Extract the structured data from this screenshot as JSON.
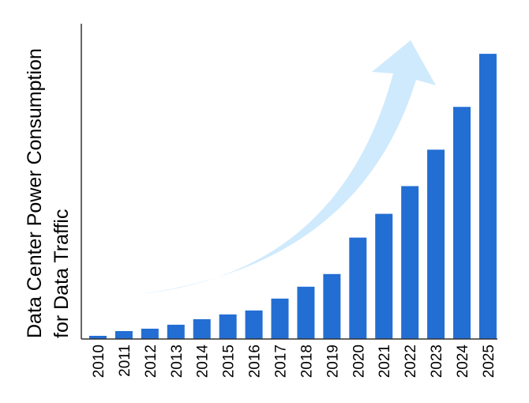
{
  "chart_data": {
    "type": "bar",
    "title": "",
    "xlabel": "",
    "ylabel": [
      "Data Center Power Consumption",
      "for Data Traffic"
    ],
    "categories": [
      "2010",
      "2011",
      "2012",
      "2013",
      "2014",
      "2015",
      "2016",
      "2017",
      "2018",
      "2019",
      "2020",
      "2021",
      "2022",
      "2023",
      "2024",
      "2025"
    ],
    "values": [
      4,
      10,
      13,
      18,
      25,
      31,
      36,
      51,
      66,
      82,
      128,
      158,
      193,
      239,
      293,
      360
    ],
    "ylim": [
      0,
      398
    ],
    "grid": false,
    "y_ticks_shown": false,
    "annotation": "upward-curved-arrow",
    "colors": {
      "bar": "#236ed3",
      "arrow": "#cfeafc",
      "axis": "#333333"
    }
  }
}
